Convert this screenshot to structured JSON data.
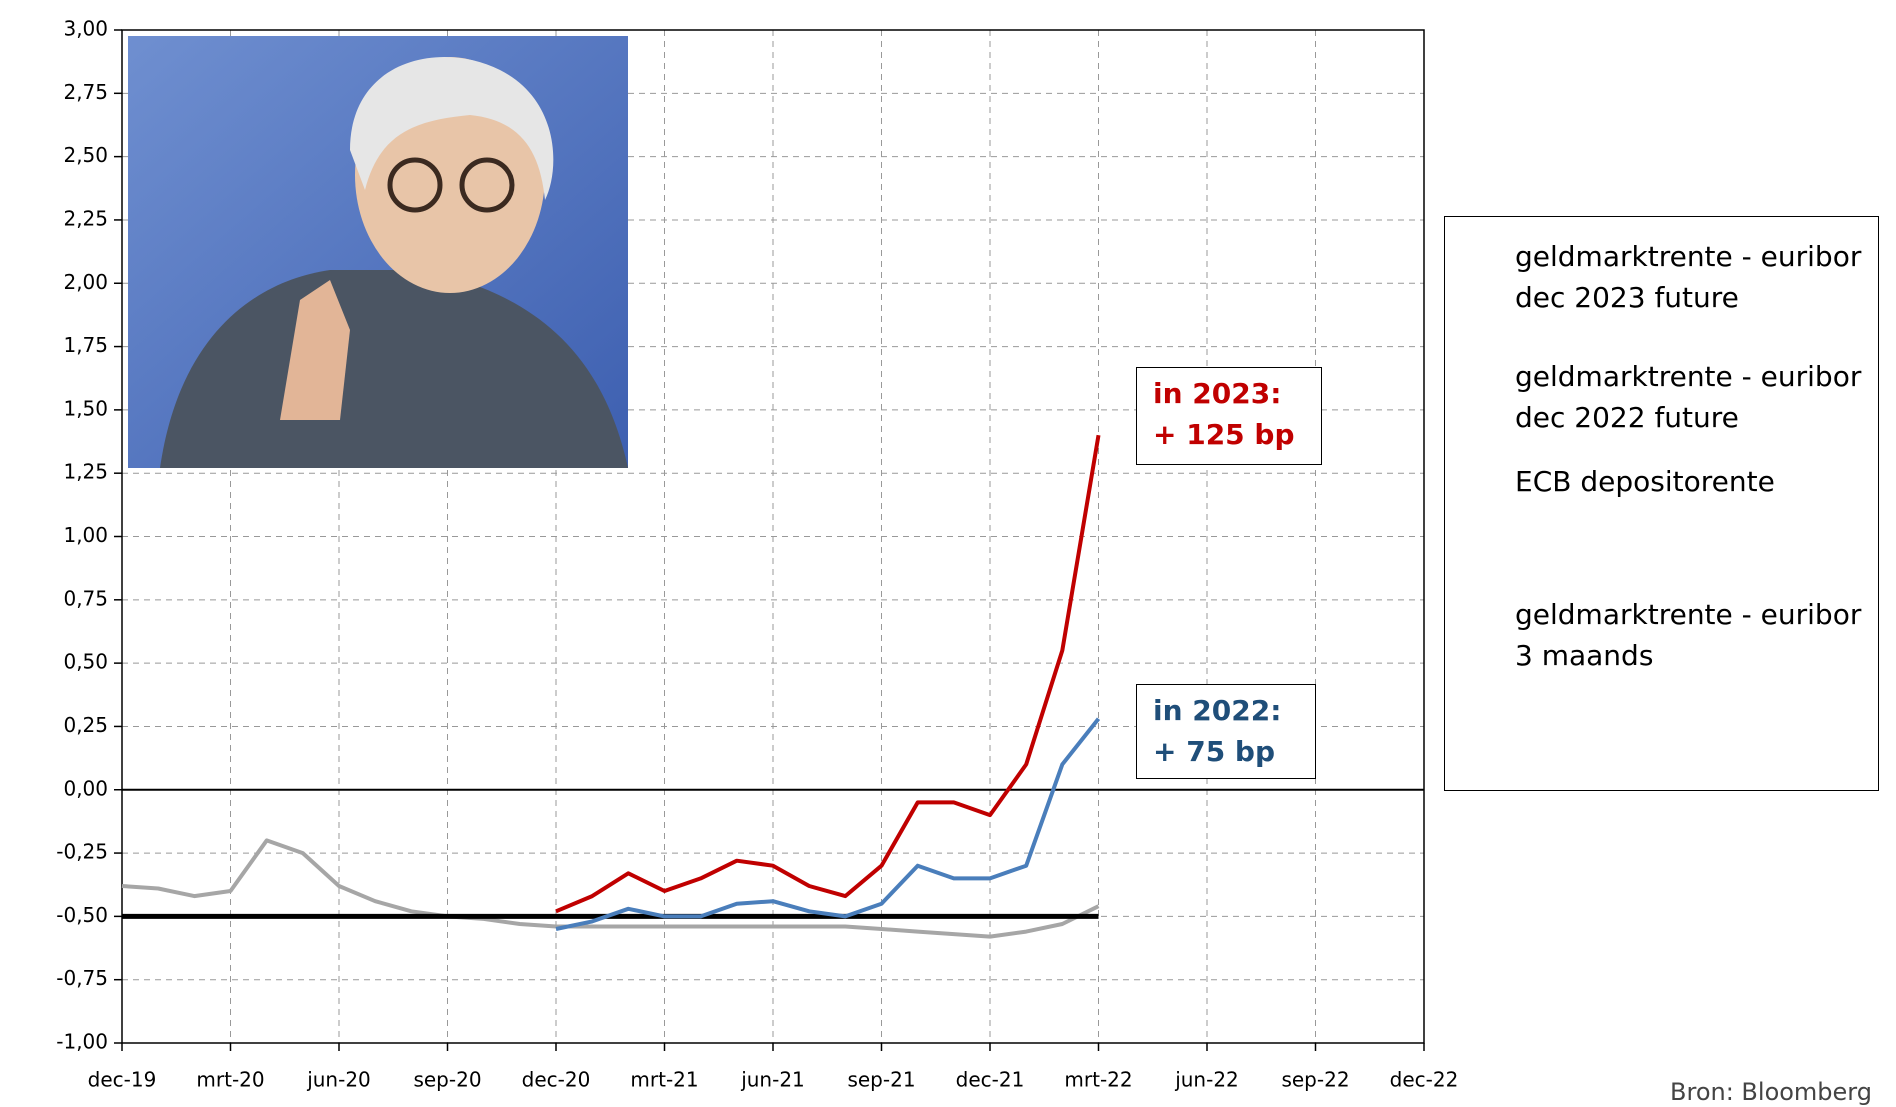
{
  "chart_data": {
    "type": "line",
    "x": [
      "2019-12",
      "2020-01",
      "2020-02",
      "2020-03",
      "2020-04",
      "2020-05",
      "2020-06",
      "2020-07",
      "2020-08",
      "2020-09",
      "2020-10",
      "2020-11",
      "2020-12",
      "2021-01",
      "2021-02",
      "2021-03",
      "2021-04",
      "2021-05",
      "2021-06",
      "2021-07",
      "2021-08",
      "2021-09",
      "2021-10",
      "2021-11",
      "2021-12",
      "2022-01",
      "2022-02",
      "2022-03"
    ],
    "series": [
      {
        "name": "geldmarktrente - euribor dec 2023 future",
        "color": "#c00000",
        "values": [
          null,
          null,
          null,
          null,
          null,
          null,
          null,
          null,
          null,
          null,
          null,
          null,
          -0.48,
          -0.42,
          -0.33,
          -0.4,
          -0.35,
          -0.28,
          -0.3,
          -0.38,
          -0.42,
          -0.3,
          -0.05,
          -0.05,
          -0.1,
          0.1,
          0.55,
          1.4
        ]
      },
      {
        "name": "geldmarktrente - euribor dec 2022 future",
        "color": "#4a7ebb",
        "values": [
          null,
          null,
          null,
          null,
          null,
          null,
          null,
          null,
          null,
          null,
          null,
          null,
          -0.55,
          -0.52,
          -0.47,
          -0.5,
          -0.5,
          -0.45,
          -0.44,
          -0.48,
          -0.5,
          -0.45,
          -0.3,
          -0.35,
          -0.35,
          -0.3,
          0.1,
          0.28
        ]
      },
      {
        "name": "ECB depositorente",
        "color": "#000000",
        "values": [
          -0.5,
          -0.5,
          -0.5,
          -0.5,
          -0.5,
          -0.5,
          -0.5,
          -0.5,
          -0.5,
          -0.5,
          -0.5,
          -0.5,
          -0.5,
          -0.5,
          -0.5,
          -0.5,
          -0.5,
          -0.5,
          -0.5,
          -0.5,
          -0.5,
          -0.5,
          -0.5,
          -0.5,
          -0.5,
          -0.5,
          -0.5,
          -0.5
        ]
      },
      {
        "name": "geldmarktrente - euribor 3 maands",
        "color": "#a6a6a6",
        "values": [
          -0.38,
          -0.39,
          -0.42,
          -0.4,
          -0.2,
          -0.25,
          -0.38,
          -0.44,
          -0.48,
          -0.5,
          -0.51,
          -0.53,
          -0.54,
          -0.54,
          -0.54,
          -0.54,
          -0.54,
          -0.54,
          -0.54,
          -0.54,
          -0.54,
          -0.55,
          -0.56,
          -0.57,
          -0.58,
          -0.56,
          -0.53,
          -0.46
        ]
      }
    ],
    "xlim": [
      "2019-12",
      "2022-12"
    ],
    "xticks": [
      {
        "value": "2019-12",
        "label": "dec-19"
      },
      {
        "value": "2020-03",
        "label": "mrt-20"
      },
      {
        "value": "2020-06",
        "label": "jun-20"
      },
      {
        "value": "2020-09",
        "label": "sep-20"
      },
      {
        "value": "2020-12",
        "label": "dec-20"
      },
      {
        "value": "2021-03",
        "label": "mrt-21"
      },
      {
        "value": "2021-06",
        "label": "jun-21"
      },
      {
        "value": "2021-09",
        "label": "sep-21"
      },
      {
        "value": "2021-12",
        "label": "dec-21"
      },
      {
        "value": "2022-03",
        "label": "mrt-22"
      },
      {
        "value": "2022-06",
        "label": "jun-22"
      },
      {
        "value": "2022-09",
        "label": "sep-22"
      },
      {
        "value": "2022-12",
        "label": "dec-22"
      }
    ],
    "ylim": [
      -1,
      3
    ],
    "yticks": [
      {
        "value": 3,
        "label": "3,00"
      },
      {
        "value": 2.75,
        "label": "2,75"
      },
      {
        "value": 2.5,
        "label": "2,50"
      },
      {
        "value": 2.25,
        "label": "2,25"
      },
      {
        "value": 2,
        "label": "2,00"
      },
      {
        "value": 1.75,
        "label": "1,75"
      },
      {
        "value": 1.5,
        "label": "1,50"
      },
      {
        "value": 1.25,
        "label": "1,25"
      },
      {
        "value": 1,
        "label": "1,00"
      },
      {
        "value": 0.75,
        "label": "0,75"
      },
      {
        "value": 0.5,
        "label": "0,50"
      },
      {
        "value": 0.25,
        "label": "0,25"
      },
      {
        "value": 0,
        "label": "0,00"
      },
      {
        "value": -0.25,
        "label": "-0,25"
      },
      {
        "value": -0.5,
        "label": "-0,50"
      },
      {
        "value": -0.75,
        "label": "-0,75"
      },
      {
        "value": -1,
        "label": "-1,00"
      }
    ],
    "grid": true,
    "zero_line": true,
    "legend": "right",
    "annotations": [
      {
        "lines": [
          "in 2023:",
          "+ 125 bp"
        ],
        "color": "#c00000"
      },
      {
        "lines": [
          "in 2022:",
          "+ 75 bp"
        ],
        "color": "#1f4e79"
      }
    ],
    "source": "Bron: Bloomberg"
  }
}
